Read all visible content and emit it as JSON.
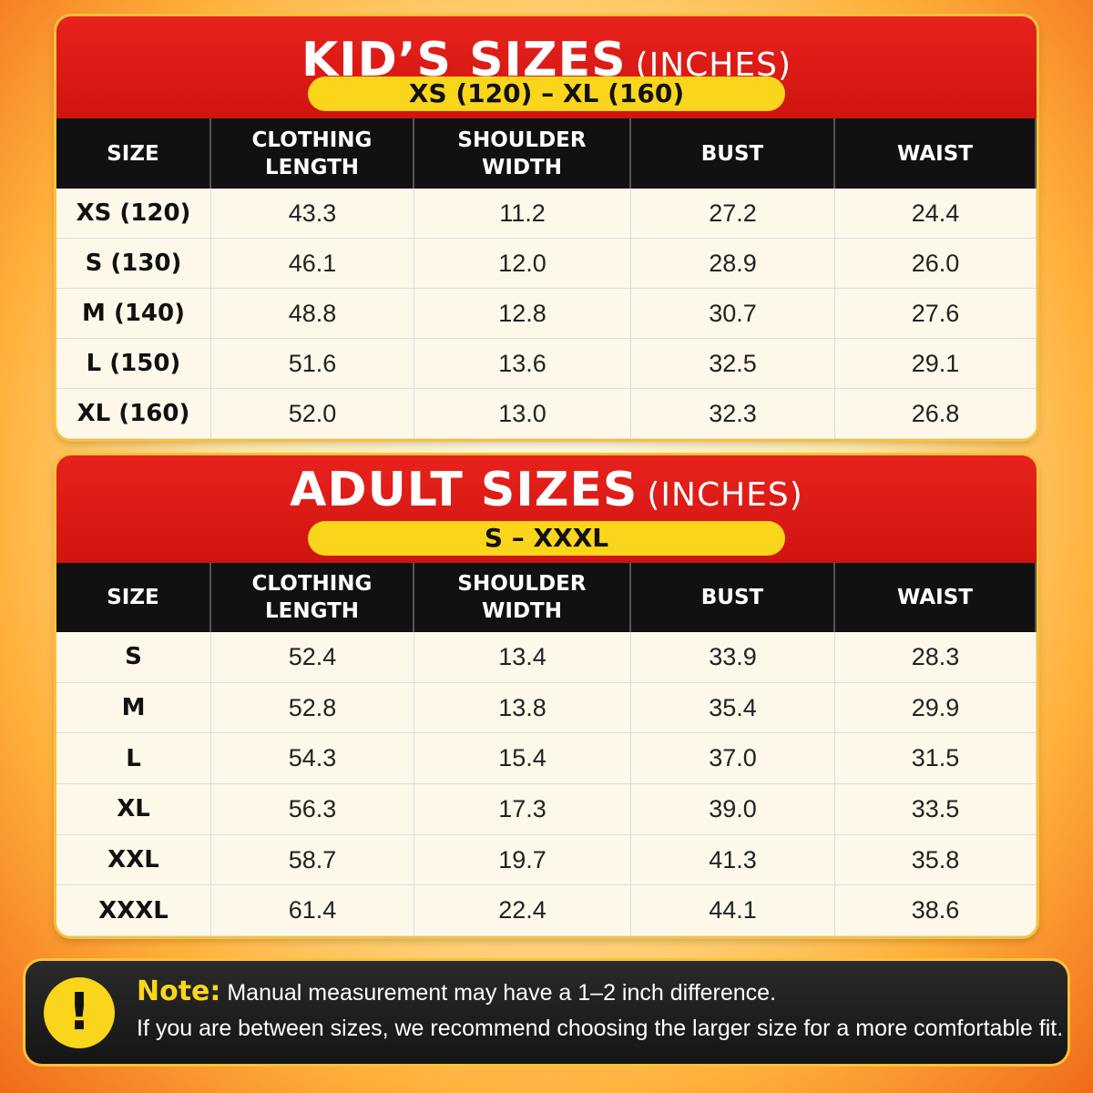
{
  "kids": {
    "title": "KID’S SIZES",
    "unit": "(INCHES)",
    "range": "XS (120) – XL (160)",
    "headers": [
      [
        "SIZE"
      ],
      [
        "CLOTHING",
        "LENGTH"
      ],
      [
        "SHOULDER",
        "WIDTH"
      ],
      [
        "BUST"
      ],
      [
        "WAIST"
      ]
    ],
    "rows": [
      [
        "XS (120)",
        "43.3",
        "11.2",
        "27.2",
        "24.4"
      ],
      [
        "S (130)",
        "46.1",
        "12.0",
        "28.9",
        "26.0"
      ],
      [
        "M (140)",
        "48.8",
        "12.8",
        "30.7",
        "27.6"
      ],
      [
        "L (150)",
        "51.6",
        "13.6",
        "32.5",
        "29.1"
      ],
      [
        "XL (160)",
        "52.0",
        "13.0",
        "32.3",
        "26.8"
      ]
    ]
  },
  "adult": {
    "title": "ADULT SIZES",
    "unit": "(INCHES)",
    "range": "S – XXXL",
    "headers": [
      [
        "SIZE"
      ],
      [
        "CLOTHING",
        "LENGTH"
      ],
      [
        "SHOULDER",
        "WIDTH"
      ],
      [
        "BUST"
      ],
      [
        "WAIST"
      ]
    ],
    "rows": [
      [
        "S",
        "52.4",
        "13.4",
        "33.9",
        "28.3"
      ],
      [
        "M",
        "52.8",
        "13.8",
        "35.4",
        "29.9"
      ],
      [
        "L",
        "54.3",
        "15.4",
        "37.0",
        "31.5"
      ],
      [
        "XL",
        "56.3",
        "17.3",
        "39.0",
        "33.5"
      ],
      [
        "XXL",
        "58.7",
        "19.7",
        "41.3",
        "35.8"
      ],
      [
        "XXXL",
        "61.4",
        "22.4",
        "44.1",
        "38.6"
      ]
    ]
  },
  "note": {
    "label": "Note:",
    "line1": "Manual measurement may have a 1–2 inch difference.",
    "line2": "If you are between sizes, we recommend choosing the larger size for a more comfortable fit."
  }
}
